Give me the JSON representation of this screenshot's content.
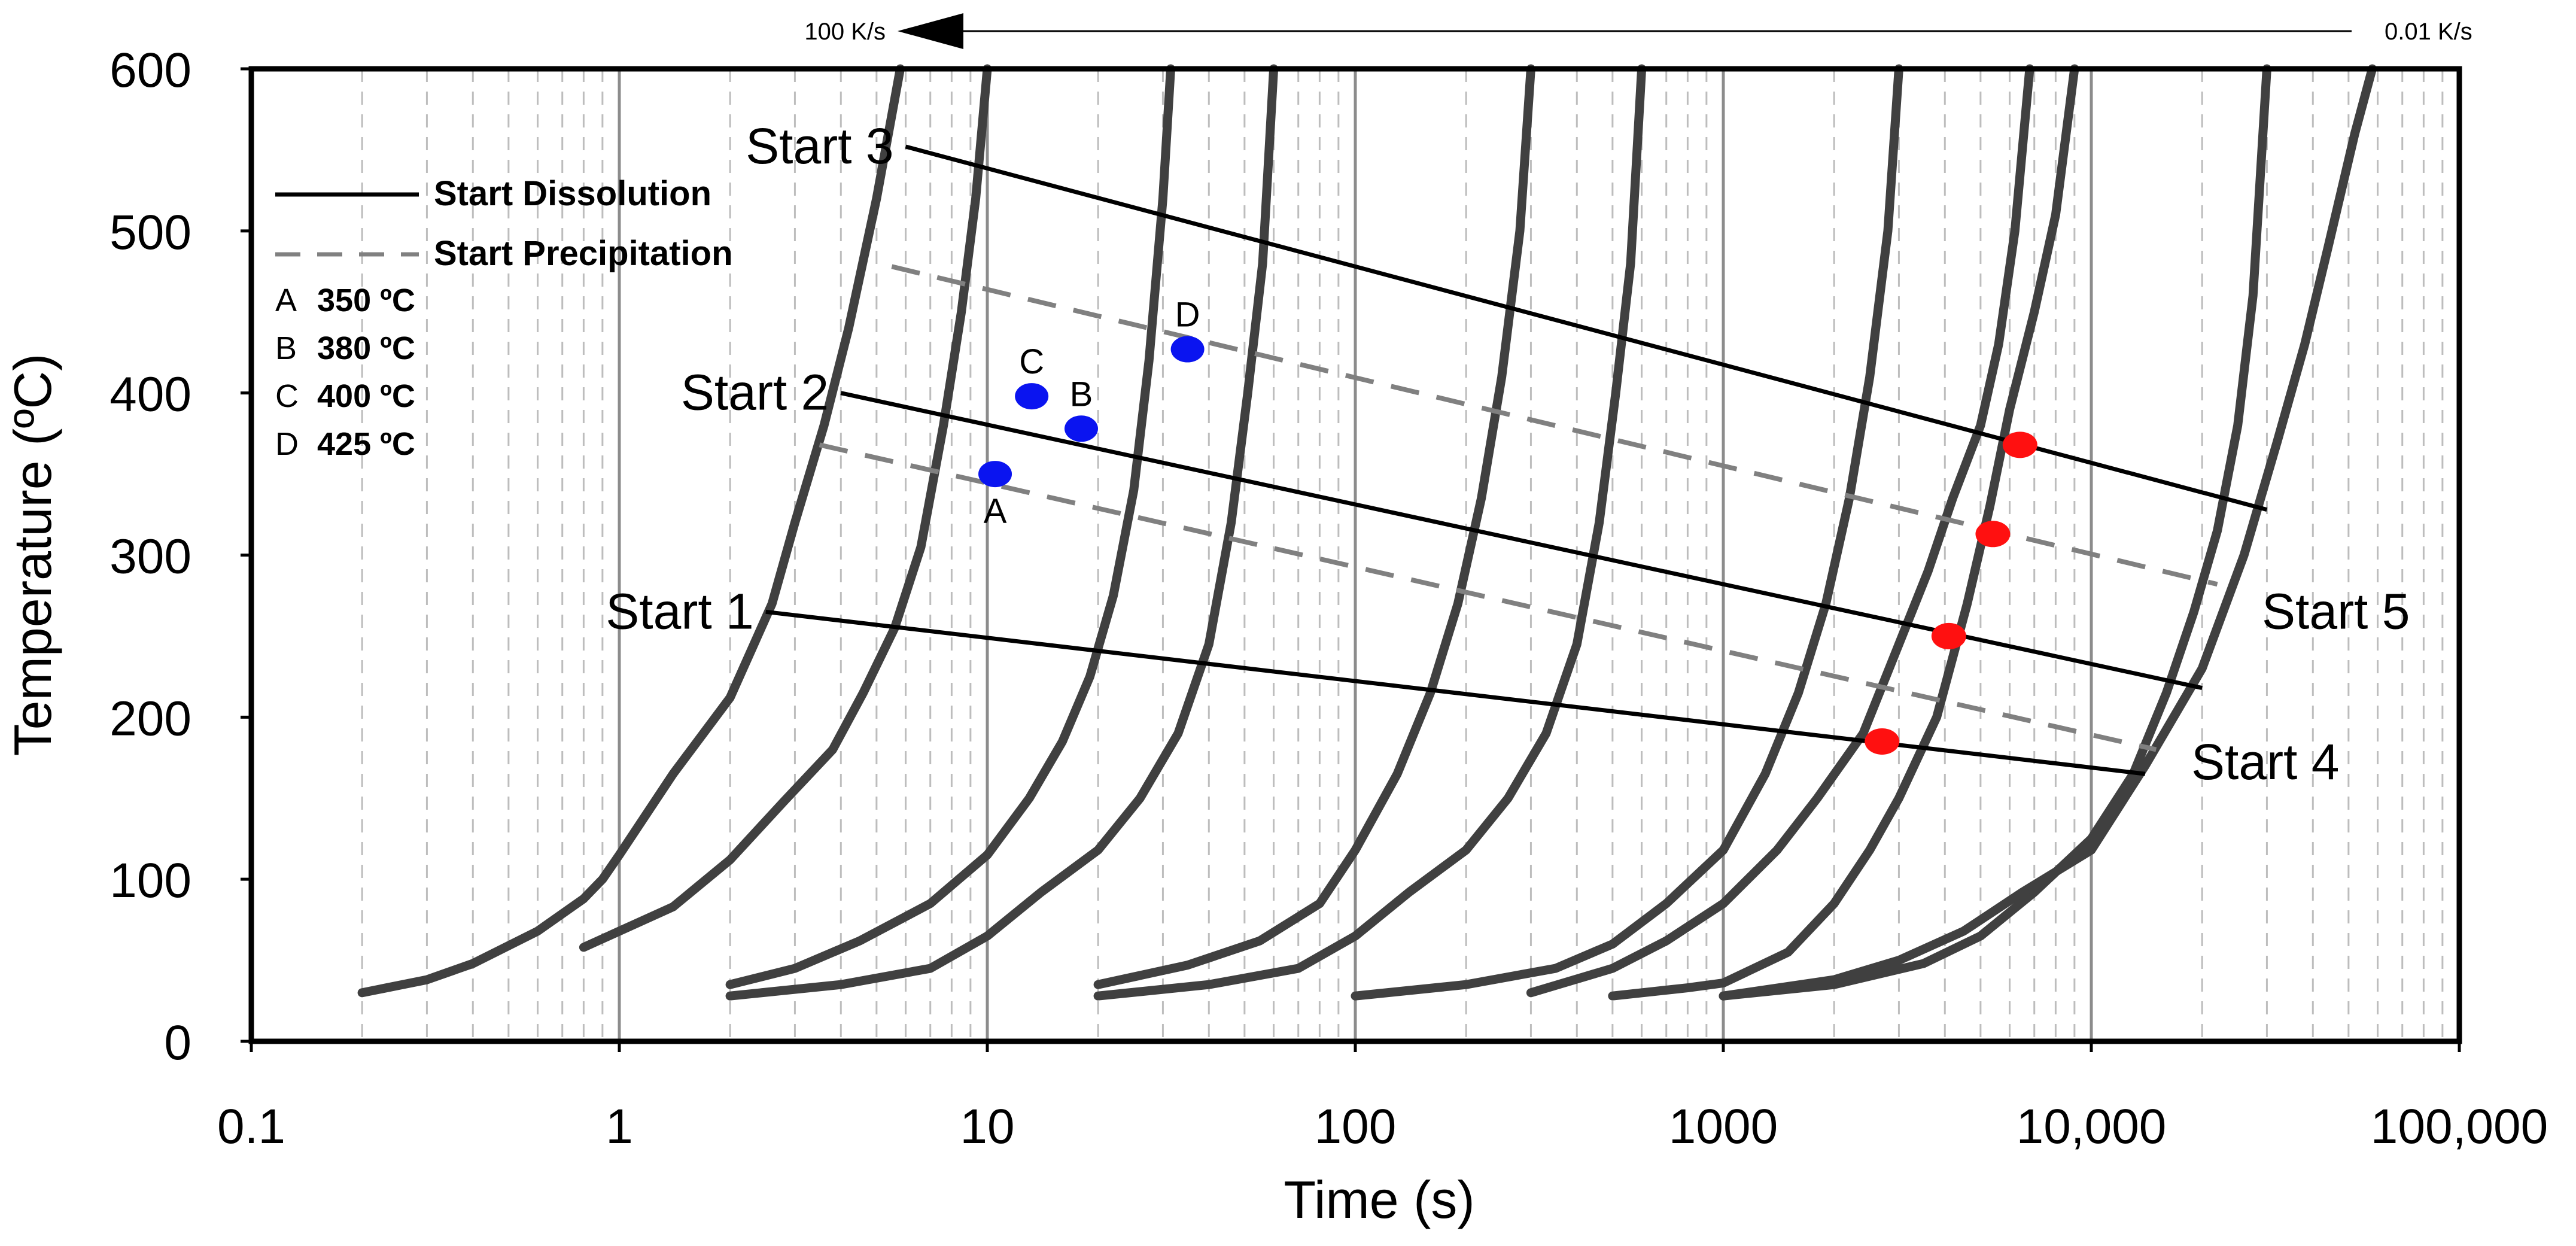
{
  "chart_data": {
    "type": "line",
    "xlabel": "Time (s)",
    "ylabel": "Temperature (ºC)",
    "xscale": "log",
    "xlim": [
      0.1,
      100000
    ],
    "ylim": [
      0,
      600
    ],
    "x_ticks": [
      0.1,
      1,
      10,
      100,
      1000,
      10000,
      100000
    ],
    "x_tick_labels": [
      "0.1",
      "1",
      "10",
      "100",
      "1000",
      "10,000",
      "100,000"
    ],
    "y_ticks": [
      0,
      100,
      200,
      300,
      400,
      500,
      600
    ],
    "y_tick_labels": [
      "0",
      "100",
      "200",
      "300",
      "400",
      "500",
      "600"
    ],
    "cooling_rate_arrow": {
      "left_label": "100 K/s",
      "right_label": "0.01 K/s"
    },
    "legend": {
      "placement": "top-left",
      "solid_label": "Start Dissolution",
      "dashed_label": "Start Precipitation",
      "temps": [
        {
          "letter": "A",
          "value": "350 ºC"
        },
        {
          "letter": "B",
          "value": "380 ºC"
        },
        {
          "letter": "C",
          "value": "400 ºC"
        },
        {
          "letter": "D",
          "value": "425 ºC"
        }
      ]
    },
    "colors": {
      "curve": "#404040",
      "solid": "#000000",
      "dashed": "#808080",
      "blue": "#0a14f0",
      "red": "#ff1010",
      "grid": "#bdbdbd",
      "decade": "#8c8c8c"
    },
    "cooling_curves": [
      {
        "name": "curve-1",
        "points": [
          [
            0.2,
            30
          ],
          [
            0.3,
            38
          ],
          [
            0.4,
            48
          ],
          [
            0.6,
            68
          ],
          [
            0.8,
            88
          ],
          [
            0.9,
            100
          ],
          [
            1.0,
            115
          ],
          [
            1.4,
            165
          ],
          [
            2.0,
            212
          ],
          [
            2.6,
            270
          ],
          [
            3.0,
            320
          ],
          [
            3.6,
            380
          ],
          [
            4.2,
            440
          ],
          [
            5.0,
            520
          ],
          [
            5.8,
            600
          ]
        ]
      },
      {
        "name": "curve-2",
        "points": [
          [
            0.8,
            58
          ],
          [
            1.4,
            83
          ],
          [
            2.0,
            112
          ],
          [
            2.8,
            148
          ],
          [
            3.8,
            180
          ],
          [
            4.6,
            215
          ],
          [
            5.6,
            255
          ],
          [
            6.6,
            305
          ],
          [
            7.6,
            380
          ],
          [
            8.5,
            450
          ],
          [
            9.3,
            520
          ],
          [
            10.0,
            600
          ]
        ]
      },
      {
        "name": "curve-3",
        "points": [
          [
            2.0,
            35
          ],
          [
            3.0,
            45
          ],
          [
            4.5,
            62
          ],
          [
            7.0,
            85
          ],
          [
            10.0,
            115
          ],
          [
            13.0,
            150
          ],
          [
            16.0,
            185
          ],
          [
            19.0,
            225
          ],
          [
            22.0,
            275
          ],
          [
            25.0,
            340
          ],
          [
            27.5,
            420
          ],
          [
            30.0,
            520
          ],
          [
            31.5,
            600
          ]
        ]
      },
      {
        "name": "curve-4",
        "points": [
          [
            2.0,
            28
          ],
          [
            4.0,
            35
          ],
          [
            7.0,
            45
          ],
          [
            10.0,
            65
          ],
          [
            14.0,
            92
          ],
          [
            20.0,
            118
          ],
          [
            26.0,
            150
          ],
          [
            33.0,
            190
          ],
          [
            40.0,
            245
          ],
          [
            46.0,
            320
          ],
          [
            51.0,
            400
          ],
          [
            56.0,
            480
          ],
          [
            60.0,
            600
          ]
        ]
      },
      {
        "name": "curve-5",
        "points": [
          [
            20.0,
            35
          ],
          [
            35.0,
            47
          ],
          [
            55.0,
            62
          ],
          [
            80.0,
            85
          ],
          [
            100.0,
            118
          ],
          [
            130.0,
            165
          ],
          [
            160.0,
            215
          ],
          [
            190.0,
            270
          ],
          [
            220.0,
            335
          ],
          [
            250.0,
            410
          ],
          [
            280.0,
            500
          ],
          [
            300.0,
            600
          ]
        ]
      },
      {
        "name": "curve-6",
        "points": [
          [
            20.0,
            28
          ],
          [
            40.0,
            35
          ],
          [
            70.0,
            45
          ],
          [
            100.0,
            65
          ],
          [
            140.0,
            92
          ],
          [
            200.0,
            118
          ],
          [
            260.0,
            150
          ],
          [
            330.0,
            190
          ],
          [
            400.0,
            245
          ],
          [
            460.0,
            320
          ],
          [
            510.0,
            400
          ],
          [
            560.0,
            480
          ],
          [
            600.0,
            600
          ]
        ]
      },
      {
        "name": "curve-7",
        "points": [
          [
            100.0,
            28
          ],
          [
            200.0,
            35
          ],
          [
            350.0,
            45
          ],
          [
            500.0,
            60
          ],
          [
            700.0,
            85
          ],
          [
            1000.0,
            118
          ],
          [
            1300.0,
            165
          ],
          [
            1600.0,
            215
          ],
          [
            1900.0,
            270
          ],
          [
            2200.0,
            335
          ],
          [
            2500.0,
            410
          ],
          [
            2800.0,
            500
          ],
          [
            3000.0,
            600
          ]
        ]
      },
      {
        "name": "curve-8",
        "points": [
          [
            300.0,
            30
          ],
          [
            500.0,
            45
          ],
          [
            700.0,
            62
          ],
          [
            1000.0,
            85
          ],
          [
            1400.0,
            118
          ],
          [
            1800.0,
            150
          ],
          [
            2400.0,
            190
          ],
          [
            3000.0,
            245
          ],
          [
            3600.0,
            290
          ],
          [
            4200.0,
            335
          ],
          [
            5000.0,
            380
          ],
          [
            5600.0,
            430
          ],
          [
            6200.0,
            500
          ],
          [
            6800.0,
            600
          ]
        ]
      },
      {
        "name": "curve-9",
        "points": [
          [
            500.0,
            28
          ],
          [
            800.0,
            33
          ],
          [
            1000.0,
            36
          ],
          [
            1500.0,
            55
          ],
          [
            2000.0,
            85
          ],
          [
            2500.0,
            118
          ],
          [
            3000.0,
            150
          ],
          [
            3800.0,
            200
          ],
          [
            4600.0,
            270
          ],
          [
            5300.0,
            330
          ],
          [
            6000.0,
            390
          ],
          [
            7000.0,
            450
          ],
          [
            8000.0,
            510
          ],
          [
            9000.0,
            600
          ]
        ]
      },
      {
        "name": "curve-10",
        "points": [
          [
            1000.0,
            28
          ],
          [
            2000.0,
            35
          ],
          [
            3500.0,
            48
          ],
          [
            5000.0,
            65
          ],
          [
            7000.0,
            92
          ],
          [
            10000.0,
            125
          ],
          [
            13000.0,
            165
          ],
          [
            16000.0,
            215
          ],
          [
            19000.0,
            265
          ],
          [
            22000.0,
            315
          ],
          [
            25000.0,
            380
          ],
          [
            27500.0,
            460
          ],
          [
            30000.0,
            600
          ]
        ]
      },
      {
        "name": "curve-11",
        "points": [
          [
            1000.0,
            28
          ],
          [
            2000.0,
            38
          ],
          [
            3000.0,
            50
          ],
          [
            4500.0,
            68
          ],
          [
            6500.0,
            92
          ],
          [
            10000.0,
            118
          ],
          [
            14000.0,
            170
          ],
          [
            20000.0,
            230
          ],
          [
            26000.0,
            300
          ],
          [
            32000.0,
            370
          ],
          [
            38000.0,
            430
          ],
          [
            44000.0,
            490
          ],
          [
            52000.0,
            560
          ],
          [
            58000.0,
            600
          ]
        ]
      }
    ],
    "solid_lines": [
      {
        "label": "Start 1",
        "from": [
          2.5,
          265
        ],
        "to": [
          14000,
          165
        ]
      },
      {
        "label": "Start 2",
        "from": [
          4.0,
          400
        ],
        "to": [
          20000,
          218
        ]
      },
      {
        "label": "Start 3",
        "from": [
          6.0,
          552
        ],
        "to": [
          30000,
          328
        ]
      },
      {
        "label": "Start 4",
        "from": [
          2.6,
          185
        ],
        "to": [
          14000,
          165
        ],
        "line": false
      }
    ],
    "dashed_lines": [
      {
        "label": "Start 4",
        "from": [
          3.5,
          368
        ],
        "to": [
          15000,
          180
        ]
      },
      {
        "label": "Start 5",
        "from": [
          5.5,
          478
        ],
        "to": [
          22000,
          282
        ]
      }
    ],
    "start_labels": [
      {
        "text": "Start 1",
        "anchor": [
          2.5,
          265
        ],
        "side": "left"
      },
      {
        "text": "Start 2",
        "anchor": [
          4.0,
          400
        ],
        "side": "left"
      },
      {
        "text": "Start 3",
        "anchor": [
          6.0,
          552
        ],
        "side": "left"
      },
      {
        "text": "Start 4",
        "anchor": [
          18000,
          172
        ],
        "side": "right"
      },
      {
        "text": "Start 5",
        "anchor": [
          28000,
          265
        ],
        "side": "right"
      }
    ],
    "blue_points": [
      {
        "label": "A",
        "x": 10.5,
        "y": 350,
        "label_pos": "below"
      },
      {
        "label": "B",
        "x": 18.0,
        "y": 378,
        "label_pos": "above"
      },
      {
        "label": "C",
        "x": 13.2,
        "y": 398,
        "label_pos": "above"
      },
      {
        "label": "D",
        "x": 35.0,
        "y": 427,
        "label_pos": "above"
      }
    ],
    "red_points": [
      {
        "x": 2700,
        "y": 185
      },
      {
        "x": 4100,
        "y": 250
      },
      {
        "x": 5400,
        "y": 313
      },
      {
        "x": 6400,
        "y": 368
      }
    ]
  }
}
